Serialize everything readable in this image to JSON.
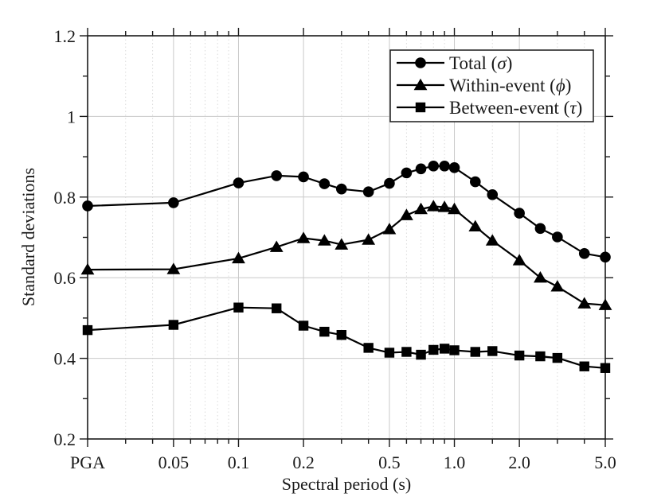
{
  "colors": {
    "background": "#ffffff",
    "line": "#000000",
    "text": "#1a1a1a",
    "grid_major": "#c9c9c9",
    "grid_minor": "#dcdcdc",
    "frame": "#1a1a1a"
  },
  "x_axis_title": "Spectral period (s)",
  "y_axis_title": "Standard deviations",
  "chart_data": {
    "type": "line",
    "title": "",
    "xlabel": "Spectral period (s)",
    "ylabel": "Standard deviations",
    "x_scale": "log",
    "xlim": [
      0.02,
      5.0
    ],
    "ylim": [
      0.2,
      1.2
    ],
    "grid": "major-solid-minor-dotted",
    "legend_position": "upper right, framed",
    "categories": [
      "PGA",
      "0.05",
      "0.1",
      "0.15",
      "0.2",
      "0.25",
      "0.3",
      "0.4",
      "0.5",
      "0.6",
      "0.7",
      "0.8",
      "0.9",
      "1.0",
      "1.25",
      "1.5",
      "2.0",
      "2.5",
      "3.0",
      "4.0",
      "5.0"
    ],
    "x": [
      0.02,
      0.05,
      0.1,
      0.15,
      0.2,
      0.25,
      0.3,
      0.4,
      0.5,
      0.6,
      0.7,
      0.8,
      0.9,
      1.0,
      1.25,
      1.5,
      2.0,
      2.5,
      3.0,
      4.0,
      5.0
    ],
    "x_note": "PGA is plotted at the left axis position 0.02",
    "series": [
      {
        "id": "total",
        "label": "Total (σ)",
        "label_prefix": "Total (",
        "symbol": "σ",
        "label_suffix": ")",
        "marker": "circle",
        "values": [
          0.778,
          0.786,
          0.835,
          0.853,
          0.85,
          0.833,
          0.82,
          0.813,
          0.834,
          0.86,
          0.87,
          0.877,
          0.877,
          0.873,
          0.838,
          0.806,
          0.76,
          0.722,
          0.701,
          0.66,
          0.651
        ]
      },
      {
        "id": "within-event",
        "label": "Within-event (ϕ)",
        "label_prefix": "Within-event (",
        "symbol": "ϕ",
        "label_suffix": ")",
        "marker": "triangle",
        "values": [
          0.62,
          0.621,
          0.648,
          0.676,
          0.698,
          0.692,
          0.682,
          0.694,
          0.72,
          0.755,
          0.77,
          0.777,
          0.775,
          0.77,
          0.727,
          0.692,
          0.643,
          0.6,
          0.578,
          0.536,
          0.532
        ]
      },
      {
        "id": "between-event",
        "label": "Between-event (τ)",
        "label_prefix": "Between-event (",
        "symbol": "τ",
        "label_suffix": ")",
        "marker": "square",
        "values": [
          0.47,
          0.483,
          0.526,
          0.524,
          0.481,
          0.466,
          0.458,
          0.426,
          0.414,
          0.416,
          0.409,
          0.421,
          0.424,
          0.42,
          0.416,
          0.418,
          0.407,
          0.405,
          0.401,
          0.38,
          0.376
        ]
      }
    ],
    "x_major_ticks": [
      {
        "value": 0.02,
        "label": "PGA"
      },
      {
        "value": 0.05,
        "label": "0.05"
      },
      {
        "value": 0.1,
        "label": "0.1"
      },
      {
        "value": 0.2,
        "label": "0.2"
      },
      {
        "value": 0.5,
        "label": "0.5"
      },
      {
        "value": 1.0,
        "label": "1.0"
      },
      {
        "value": 2.0,
        "label": "2.0"
      },
      {
        "value": 5.0,
        "label": "5.0"
      }
    ],
    "x_minor_ticks": [
      0.03,
      0.04,
      0.06,
      0.07,
      0.08,
      0.09,
      0.3,
      0.4,
      0.6,
      0.7,
      0.8,
      0.9,
      1.5,
      3.0,
      4.0
    ],
    "y_major_ticks": [
      {
        "value": 0.2,
        "label": "0.2"
      },
      {
        "value": 0.4,
        "label": "0.4"
      },
      {
        "value": 0.6,
        "label": "0.6"
      },
      {
        "value": 0.8,
        "label": "0.8"
      },
      {
        "value": 1.0,
        "label": "1"
      },
      {
        "value": 1.2,
        "label": "1.2"
      }
    ],
    "y_minor_ticks": [
      0.3,
      0.5,
      0.7,
      0.9,
      1.1
    ]
  }
}
